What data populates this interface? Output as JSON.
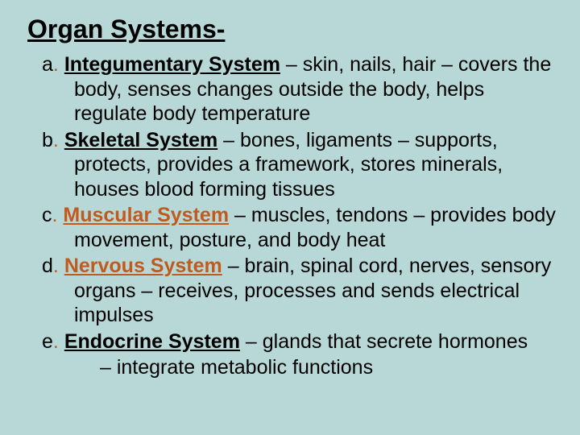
{
  "background_color": "#b8d8d8",
  "accent_color": "#c05a1e",
  "text_color": "#000000",
  "title_fontsize": 32,
  "body_fontsize": 25,
  "title": "Organ Systems-",
  "items": [
    {
      "marker": "a",
      "system": "Integumentary System",
      "system_color": "black",
      "desc": " – skin, nails, hair – covers the body, senses changes outside the body, helps regulate body temperature"
    },
    {
      "marker": "b",
      "system": "Skeletal System",
      "system_color": "black",
      "desc": " – bones, ligaments – supports, protects, provides a framework, stores minerals, houses blood forming tissues"
    },
    {
      "marker": "c",
      "system": "Muscular System",
      "system_color": "orange",
      "desc": " – muscles, tendons – provides body movement, posture, and body heat"
    },
    {
      "marker": "d",
      "system": "Nervous System",
      "system_color": "orange",
      "desc": " – brain, spinal cord, nerves, sensory organs – receives, processes and sends electrical impulses"
    },
    {
      "marker": "e",
      "system": "Endocrine System",
      "system_color": "black",
      "desc": " – glands that secrete hormones",
      "desc2": "– integrate metabolic functions"
    }
  ]
}
